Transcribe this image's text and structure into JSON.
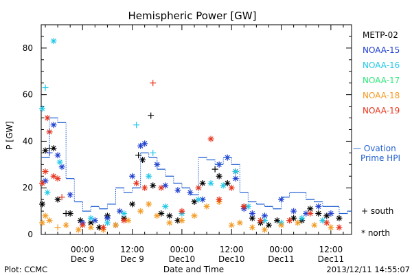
{
  "chart_data": {
    "type": "scatter",
    "title": "Hemispheric Power [GW]",
    "ylabel": "P [GW]",
    "xlabel": "Date and Time",
    "ylim": [
      0,
      90
    ],
    "xlim": [
      "2013-12-08 14:00",
      "2013-12-11 17:00"
    ],
    "y_ticks": [
      0,
      20,
      40,
      60,
      80
    ],
    "x_ticks": [
      {
        "time": "00:00",
        "date": "Dec 9"
      },
      {
        "time": "12:00",
        "date": "Dec 9"
      },
      {
        "time": "00:00",
        "date": "Dec10"
      },
      {
        "time": "12:00",
        "date": "Dec10"
      },
      {
        "time": "00:00",
        "date": "Dec11"
      },
      {
        "time": "12:00",
        "date": "Dec11"
      }
    ],
    "markers_legend": {
      "south": "+ south",
      "north": "* north"
    },
    "series": [
      {
        "name": "METP-02",
        "color": "#000000",
        "points": [
          [
            "2013-12-08 14:15",
            13,
            "north"
          ],
          [
            "2013-12-08 15:00",
            36,
            "north"
          ],
          [
            "2013-12-08 16:00",
            37,
            "south"
          ],
          [
            "2013-12-08 17:00",
            37,
            "north"
          ],
          [
            "2013-12-08 18:00",
            15,
            "north"
          ],
          [
            "2013-12-08 20:00",
            9,
            "south"
          ],
          [
            "2013-12-08 21:00",
            9,
            "north"
          ],
          [
            "2013-12-08 23:30",
            6,
            "north"
          ],
          [
            "2013-12-09 02:00",
            5,
            "north"
          ],
          [
            "2013-12-09 04:00",
            3,
            "north"
          ],
          [
            "2013-12-09 06:00",
            8,
            "north"
          ],
          [
            "2013-12-09 08:00",
            4,
            "north"
          ],
          [
            "2013-12-09 10:00",
            7,
            "north"
          ],
          [
            "2013-12-09 12:00",
            13,
            "north"
          ],
          [
            "2013-12-09 13:30",
            34,
            "south"
          ],
          [
            "2013-12-09 14:30",
            32,
            "north"
          ],
          [
            "2013-12-09 16:30",
            51,
            "south"
          ],
          [
            "2013-12-09 17:00",
            21,
            "north"
          ],
          [
            "2013-12-09 19:00",
            9,
            "north"
          ],
          [
            "2013-12-09 21:00",
            8,
            "north"
          ],
          [
            "2013-12-09 23:00",
            6,
            "north"
          ],
          [
            "2013-12-10 03:00",
            14,
            "north"
          ],
          [
            "2013-12-10 05:00",
            22,
            "north"
          ],
          [
            "2013-12-10 08:00",
            28,
            "south"
          ],
          [
            "2013-12-10 09:00",
            25,
            "north"
          ],
          [
            "2013-12-10 11:00",
            22,
            "north"
          ],
          [
            "2013-12-10 13:00",
            27,
            "north"
          ],
          [
            "2013-12-10 15:00",
            12,
            "north"
          ],
          [
            "2013-12-10 17:00",
            7,
            "north"
          ],
          [
            "2013-12-10 19:00",
            5,
            "north"
          ],
          [
            "2013-12-10 21:00",
            4,
            "north"
          ],
          [
            "2013-12-10 23:00",
            6,
            "north"
          ],
          [
            "2013-12-11 03:00",
            7,
            "north"
          ],
          [
            "2013-12-11 05:00",
            6,
            "north"
          ],
          [
            "2013-12-11 07:00",
            11,
            "north"
          ],
          [
            "2013-12-11 09:00",
            9,
            "north"
          ],
          [
            "2013-12-11 11:00",
            8,
            "north"
          ],
          [
            "2013-12-11 14:00",
            7,
            "north"
          ]
        ]
      },
      {
        "name": "NOAA-15",
        "color": "#1f3fd0",
        "points": [
          [
            "2013-12-08 15:00",
            23,
            "north"
          ],
          [
            "2013-12-08 16:00",
            35,
            "south"
          ],
          [
            "2013-12-08 17:00",
            47,
            "north"
          ],
          [
            "2013-12-08 18:00",
            34,
            "north"
          ],
          [
            "2013-12-08 19:00",
            29,
            "north"
          ],
          [
            "2013-12-08 21:00",
            17,
            "north"
          ],
          [
            "2013-12-09 00:00",
            5,
            "north"
          ],
          [
            "2013-12-09 03:00",
            6,
            "north"
          ],
          [
            "2013-12-09 06:00",
            7,
            "north"
          ],
          [
            "2013-12-09 09:00",
            10,
            "north"
          ],
          [
            "2013-12-09 12:00",
            25,
            "north"
          ],
          [
            "2013-12-09 14:00",
            38,
            "north"
          ],
          [
            "2013-12-09 15:00",
            39,
            "north"
          ],
          [
            "2013-12-09 18:00",
            30,
            "north"
          ],
          [
            "2013-12-09 20:00",
            21,
            "north"
          ],
          [
            "2013-12-09 23:00",
            19,
            "north"
          ],
          [
            "2013-12-10 02:00",
            18,
            "north"
          ],
          [
            "2013-12-10 05:00",
            15,
            "north"
          ],
          [
            "2013-12-10 09:00",
            30,
            "north"
          ],
          [
            "2013-12-10 11:00",
            33,
            "north"
          ],
          [
            "2013-12-10 13:00",
            24,
            "north"
          ],
          [
            "2013-12-10 15:00",
            11,
            "north"
          ],
          [
            "2013-12-10 17:00",
            9,
            "north"
          ],
          [
            "2013-12-10 20:00",
            8,
            "north"
          ],
          [
            "2013-12-11 00:00",
            15,
            "north"
          ],
          [
            "2013-12-11 03:00",
            10,
            "north"
          ],
          [
            "2013-12-11 06:00",
            9,
            "north"
          ],
          [
            "2013-12-11 09:00",
            12,
            "north"
          ],
          [
            "2013-12-11 12:00",
            9,
            "north"
          ]
        ]
      },
      {
        "name": "NOAA-16",
        "color": "#22c8e8",
        "points": [
          [
            "2013-12-08 14:15",
            54,
            "north"
          ],
          [
            "2013-12-08 15:00",
            63,
            "south"
          ],
          [
            "2013-12-08 15:30",
            18,
            "north"
          ],
          [
            "2013-12-08 17:00",
            83,
            "north"
          ],
          [
            "2013-12-08 18:30",
            31,
            "north"
          ],
          [
            "2013-12-09 02:00",
            7,
            "north"
          ],
          [
            "2013-12-09 06:00",
            5,
            "north"
          ],
          [
            "2013-12-09 10:00",
            9,
            "north"
          ],
          [
            "2013-12-09 13:00",
            47,
            "south"
          ],
          [
            "2013-12-09 16:00",
            25,
            "north"
          ],
          [
            "2013-12-09 17:00",
            35,
            "south"
          ],
          [
            "2013-12-09 20:00",
            12,
            "north"
          ],
          [
            "2013-12-10 00:00",
            9,
            "north"
          ],
          [
            "2013-12-10 04:00",
            15,
            "north"
          ],
          [
            "2013-12-10 07:00",
            22,
            "north"
          ],
          [
            "2013-12-10 10:00",
            21,
            "north"
          ],
          [
            "2013-12-10 13:00",
            27,
            "north"
          ],
          [
            "2013-12-10 16:00",
            12,
            "north"
          ],
          [
            "2013-12-10 20:00",
            6,
            "north"
          ],
          [
            "2013-12-11 00:00",
            5,
            "north"
          ],
          [
            "2013-12-11 05:00",
            7,
            "north"
          ],
          [
            "2013-12-11 10:00",
            6,
            "north"
          ]
        ]
      },
      {
        "name": "NOAA-17",
        "color": "#2ee87a",
        "points": []
      },
      {
        "name": "NOAA-18",
        "color": "#f39a22",
        "points": [
          [
            "2013-12-08 14:15",
            5,
            "north"
          ],
          [
            "2013-12-08 15:00",
            8,
            "north"
          ],
          [
            "2013-12-08 16:00",
            6,
            "north"
          ],
          [
            "2013-12-08 18:00",
            3,
            "south"
          ],
          [
            "2013-12-08 20:00",
            4,
            "north"
          ],
          [
            "2013-12-08 23:00",
            2,
            "north"
          ],
          [
            "2013-12-09 02:00",
            3,
            "north"
          ],
          [
            "2013-12-09 05:00",
            2,
            "north"
          ],
          [
            "2013-12-09 08:00",
            4,
            "north"
          ],
          [
            "2013-12-09 11:00",
            6,
            "north"
          ],
          [
            "2013-12-09 14:00",
            10,
            "north"
          ],
          [
            "2013-12-09 16:00",
            13,
            "north"
          ],
          [
            "2013-12-09 18:00",
            8,
            "north"
          ],
          [
            "2013-12-09 21:00",
            5,
            "north"
          ],
          [
            "2013-12-10 00:00",
            6,
            "north"
          ],
          [
            "2013-12-10 03:00",
            8,
            "north"
          ],
          [
            "2013-12-10 06:00",
            12,
            "north"
          ],
          [
            "2013-12-10 09:00",
            14,
            "north"
          ],
          [
            "2013-12-10 12:00",
            4,
            "north"
          ],
          [
            "2013-12-10 14:00",
            5,
            "north"
          ],
          [
            "2013-12-10 17:00",
            3,
            "north"
          ],
          [
            "2013-12-10 20:00",
            2,
            "north"
          ],
          [
            "2013-12-11 00:00",
            4,
            "north"
          ],
          [
            "2013-12-11 04:00",
            5,
            "north"
          ],
          [
            "2013-12-11 08:00",
            4,
            "north"
          ],
          [
            "2013-12-11 12:00",
            3,
            "north"
          ]
        ]
      },
      {
        "name": "NOAA-19",
        "color": "#e8341c",
        "points": [
          [
            "2013-12-08 14:15",
            22,
            "north"
          ],
          [
            "2013-12-08 15:00",
            27,
            "north"
          ],
          [
            "2013-12-08 15:30",
            50,
            "north"
          ],
          [
            "2013-12-08 16:00",
            44,
            "north"
          ],
          [
            "2013-12-08 17:00",
            25,
            "north"
          ],
          [
            "2013-12-08 18:00",
            24,
            "north"
          ],
          [
            "2013-12-08 19:00",
            16,
            "south"
          ],
          [
            "2013-12-09 00:00",
            4,
            "north"
          ],
          [
            "2013-12-09 05:00",
            3,
            "north"
          ],
          [
            "2013-12-09 10:00",
            6,
            "north"
          ],
          [
            "2013-12-09 13:00",
            22,
            "north"
          ],
          [
            "2013-12-09 15:00",
            20,
            "north"
          ],
          [
            "2013-12-09 17:00",
            65,
            "south"
          ],
          [
            "2013-12-09 19:00",
            20,
            "north"
          ],
          [
            "2013-12-10 00:00",
            10,
            "north"
          ],
          [
            "2013-12-10 04:00",
            20,
            "north"
          ],
          [
            "2013-12-10 07:00",
            41,
            "north"
          ],
          [
            "2013-12-10 09:00",
            15,
            "north"
          ],
          [
            "2013-12-10 12:00",
            20,
            "north"
          ],
          [
            "2013-12-10 15:00",
            12,
            "north"
          ],
          [
            "2013-12-10 19:00",
            6,
            "north"
          ],
          [
            "2013-12-11 02:00",
            6,
            "north"
          ],
          [
            "2013-12-11 07:00",
            9,
            "north"
          ],
          [
            "2013-12-11 11:00",
            5,
            "north"
          ],
          [
            "2013-12-11 14:00",
            3,
            "north"
          ]
        ]
      },
      {
        "name": "— Ovation Prime HPI",
        "legend_lines": [
          "— Ovation",
          "Prime HPI"
        ],
        "color": "#1f5fd0",
        "style": "step-dashed",
        "points": [
          [
            "2013-12-08 14:00",
            33
          ],
          [
            "2013-12-08 16:00",
            50
          ],
          [
            "2013-12-08 18:00",
            48
          ],
          [
            "2013-12-08 20:00",
            24
          ],
          [
            "2013-12-08 22:00",
            14
          ],
          [
            "2013-12-09 00:00",
            10
          ],
          [
            "2013-12-09 02:00",
            12
          ],
          [
            "2013-12-09 04:00",
            11
          ],
          [
            "2013-12-09 06:00",
            13
          ],
          [
            "2013-12-09 08:00",
            20
          ],
          [
            "2013-12-09 10:00",
            18
          ],
          [
            "2013-12-09 12:00",
            20
          ],
          [
            "2013-12-09 14:00",
            35
          ],
          [
            "2013-12-09 16:00",
            33
          ],
          [
            "2013-12-09 18:00",
            28
          ],
          [
            "2013-12-09 20:00",
            25
          ],
          [
            "2013-12-09 22:00",
            22
          ],
          [
            "2013-12-10 00:00",
            20
          ],
          [
            "2013-12-10 02:00",
            17
          ],
          [
            "2013-12-10 04:00",
            33
          ],
          [
            "2013-12-10 06:00",
            32
          ],
          [
            "2013-12-10 08:00",
            30
          ],
          [
            "2013-12-10 10:00",
            33
          ],
          [
            "2013-12-10 12:00",
            30
          ],
          [
            "2013-12-10 14:00",
            18
          ],
          [
            "2013-12-10 16:00",
            14
          ],
          [
            "2013-12-10 18:00",
            13
          ],
          [
            "2013-12-10 20:00",
            12
          ],
          [
            "2013-12-10 22:00",
            11
          ],
          [
            "2013-12-11 00:00",
            16
          ],
          [
            "2013-12-11 02:00",
            18
          ],
          [
            "2013-12-11 04:00",
            18
          ],
          [
            "2013-12-11 06:00",
            15
          ],
          [
            "2013-12-11 08:00",
            14
          ],
          [
            "2013-12-11 10:00",
            12
          ],
          [
            "2013-12-11 12:00",
            12
          ],
          [
            "2013-12-11 14:00",
            9
          ],
          [
            "2013-12-11 16:00",
            10
          ]
        ]
      }
    ],
    "grid": false,
    "legend_position": "right"
  },
  "footer": {
    "left": "Plot: CCMC",
    "right": "2013/12/11 14:55:07"
  }
}
